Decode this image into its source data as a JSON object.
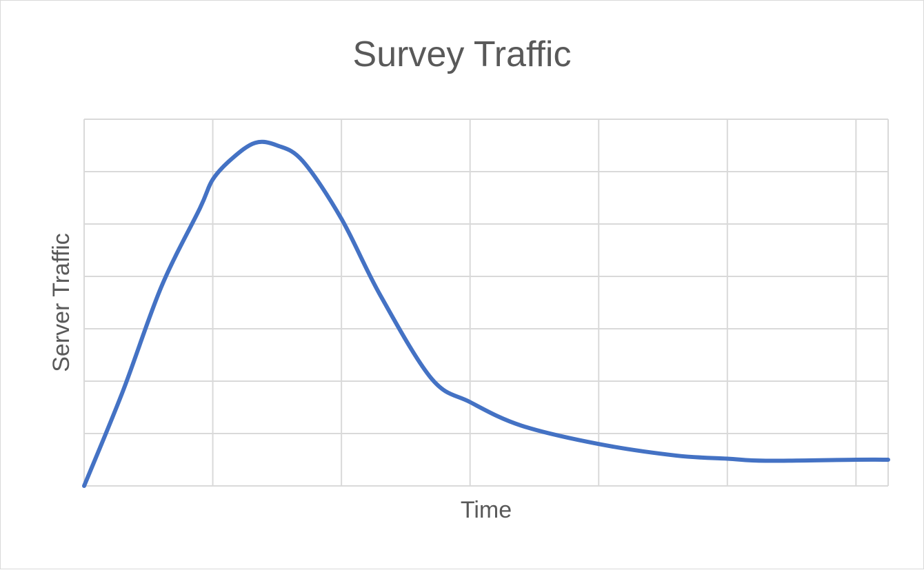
{
  "chart_data": {
    "type": "line",
    "title": "Survey Traffic",
    "xlabel": "Time",
    "ylabel": "Server Traffic",
    "xlim": [
      0,
      6.25
    ],
    "ylim": [
      0,
      7
    ],
    "grid": true,
    "legend": "none",
    "tick_labels_shown": false,
    "colors": {
      "line": "#4472C4",
      "grid": "#d9d9d9",
      "text": "#595959"
    },
    "series": [
      {
        "x": [
          0,
          0.3,
          0.6,
          0.9,
          1.0,
          1.15,
          1.33,
          1.5,
          1.7,
          2.0,
          2.3,
          2.7,
          3.0,
          3.4,
          4.0,
          4.6,
          5.0,
          5.3,
          6.0,
          6.25
        ],
        "y": [
          0,
          1.8,
          3.8,
          5.3,
          5.85,
          6.25,
          6.55,
          6.5,
          6.2,
          5.1,
          3.65,
          2.05,
          1.6,
          1.15,
          0.8,
          0.58,
          0.52,
          0.48,
          0.5,
          0.5
        ]
      }
    ]
  }
}
